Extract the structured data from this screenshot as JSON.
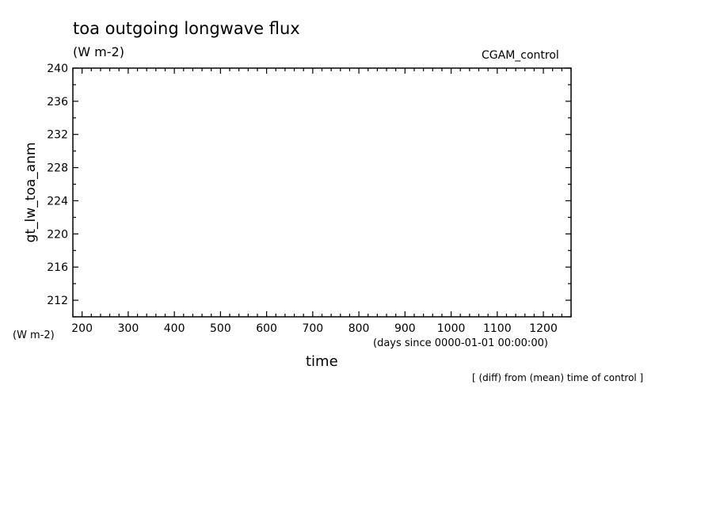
{
  "header": {
    "title": "toa outgoing longwave flux",
    "units": "(W m-2)",
    "run_label": "CGAM_control"
  },
  "footer": {
    "y_units": "(W m-2)",
    "x_units": "(days since 0000-01-01 00:00:00)",
    "note": "[ (diff) from (mean) time of control ]"
  },
  "chart_data": {
    "type": "line",
    "title": "toa outgoing longwave flux",
    "subtitle": "(W m-2)",
    "xlabel": "time",
    "ylabel": "gt_lw_toa_anm",
    "xlim": [
      180,
      1260
    ],
    "ylim": [
      210,
      240
    ],
    "x_ticks": [
      200,
      300,
      400,
      500,
      600,
      700,
      800,
      900,
      1000,
      1100,
      1200
    ],
    "y_ticks": [
      212,
      216,
      220,
      224,
      228,
      232,
      236,
      240
    ],
    "grid": false,
    "series": []
  }
}
